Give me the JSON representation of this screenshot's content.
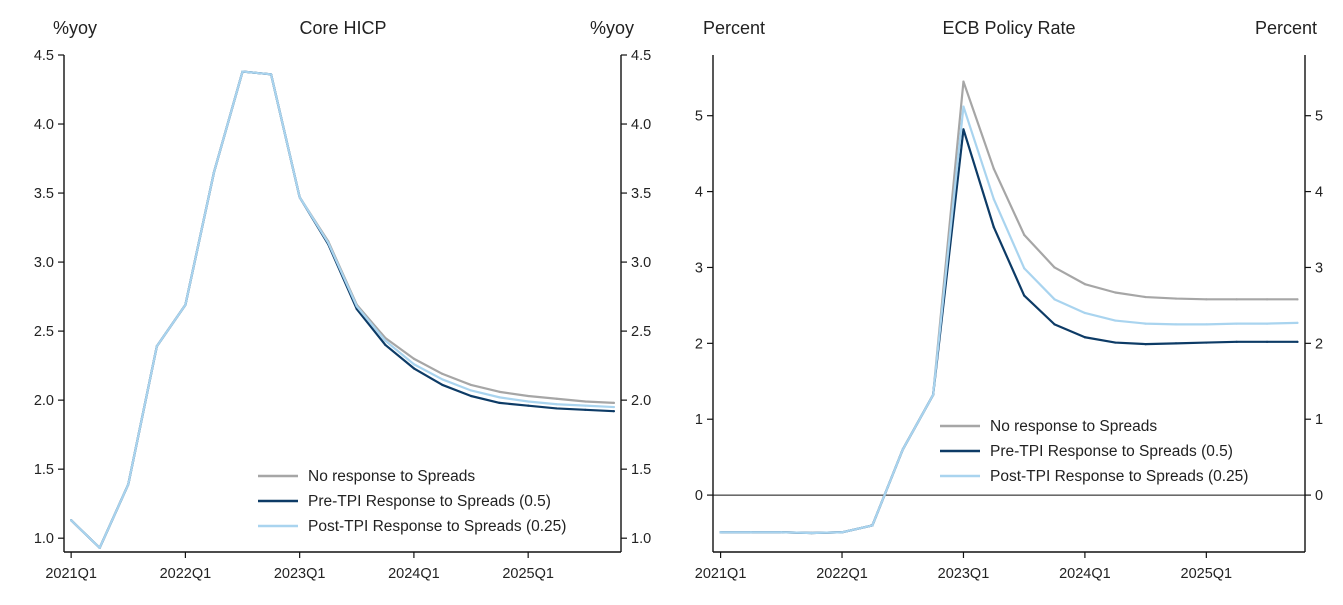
{
  "chart_data": [
    {
      "type": "line",
      "title": "Core HICP",
      "ylabel_left": "%yoy",
      "ylabel_right": "%yoy",
      "ylim": [
        0.9,
        4.5
      ],
      "yticks": [
        "1.0",
        "1.5",
        "2.0",
        "2.5",
        "3.0",
        "3.5",
        "4.0",
        "4.5"
      ],
      "xlim": [
        -0.25,
        19.25
      ],
      "xticks": [
        {
          "label": "2021Q1",
          "x": 0
        },
        {
          "label": "2022Q1",
          "x": 4
        },
        {
          "label": "2023Q1",
          "x": 8
        },
        {
          "label": "2024Q1",
          "x": 12
        },
        {
          "label": "2025Q1",
          "x": 16
        }
      ],
      "zero_line": false,
      "legend_position": "bottom-right",
      "series": [
        {
          "name": "No response to Spreads",
          "color": "#a6a6a6",
          "values": [
            1.13,
            0.93,
            1.39,
            2.39,
            2.69,
            3.65,
            4.38,
            4.36,
            3.47,
            3.15,
            2.69,
            2.45,
            2.3,
            2.19,
            2.11,
            2.06,
            2.03,
            2.01,
            1.99,
            1.98
          ]
        },
        {
          "name": "Pre-TPI Response to Spreads (0.5)",
          "color": "#0d3b66",
          "values": [
            1.13,
            0.93,
            1.39,
            2.39,
            2.69,
            3.65,
            4.38,
            4.36,
            3.47,
            3.13,
            2.66,
            2.4,
            2.23,
            2.11,
            2.03,
            1.98,
            1.96,
            1.94,
            1.93,
            1.92
          ]
        },
        {
          "name": "Post-TPI Response to Spreads (0.25)",
          "color": "#a9d4ef",
          "values": [
            1.13,
            0.93,
            1.39,
            2.39,
            2.69,
            3.65,
            4.38,
            4.36,
            3.47,
            3.14,
            2.68,
            2.43,
            2.26,
            2.15,
            2.07,
            2.02,
            1.99,
            1.97,
            1.96,
            1.95
          ]
        }
      ]
    },
    {
      "type": "line",
      "title": "ECB Policy Rate",
      "ylabel_left": "Percent",
      "ylabel_right": "Percent",
      "ylim": [
        -0.75,
        5.8
      ],
      "yticks": [
        "0",
        "1",
        "2",
        "3",
        "4",
        "5"
      ],
      "xlim": [
        -0.25,
        19.25
      ],
      "xticks": [
        {
          "label": "2021Q1",
          "x": 0
        },
        {
          "label": "2022Q1",
          "x": 4
        },
        {
          "label": "2023Q1",
          "x": 8
        },
        {
          "label": "2024Q1",
          "x": 12
        },
        {
          "label": "2025Q1",
          "x": 16
        }
      ],
      "zero_line": true,
      "legend_position": "bottom-right",
      "series": [
        {
          "name": "No response to Spreads",
          "color": "#a6a6a6",
          "values": [
            -0.49,
            -0.49,
            -0.49,
            -0.5,
            -0.49,
            -0.4,
            0.6,
            1.32,
            5.45,
            4.3,
            3.43,
            3.0,
            2.78,
            2.67,
            2.61,
            2.59,
            2.58,
            2.58,
            2.58,
            2.58
          ]
        },
        {
          "name": "Pre-TPI Response to Spreads (0.5)",
          "color": "#0d3b66",
          "values": [
            -0.49,
            -0.49,
            -0.49,
            -0.5,
            -0.49,
            -0.4,
            0.6,
            1.32,
            4.82,
            3.53,
            2.63,
            2.25,
            2.08,
            2.01,
            1.99,
            2.0,
            2.01,
            2.02,
            2.02,
            2.02
          ]
        },
        {
          "name": "Post-TPI Response to Spreads (0.25)",
          "color": "#a9d4ef",
          "values": [
            -0.49,
            -0.49,
            -0.49,
            -0.5,
            -0.49,
            -0.4,
            0.6,
            1.32,
            5.12,
            3.9,
            2.99,
            2.58,
            2.4,
            2.3,
            2.26,
            2.25,
            2.25,
            2.26,
            2.26,
            2.27
          ]
        }
      ]
    }
  ]
}
